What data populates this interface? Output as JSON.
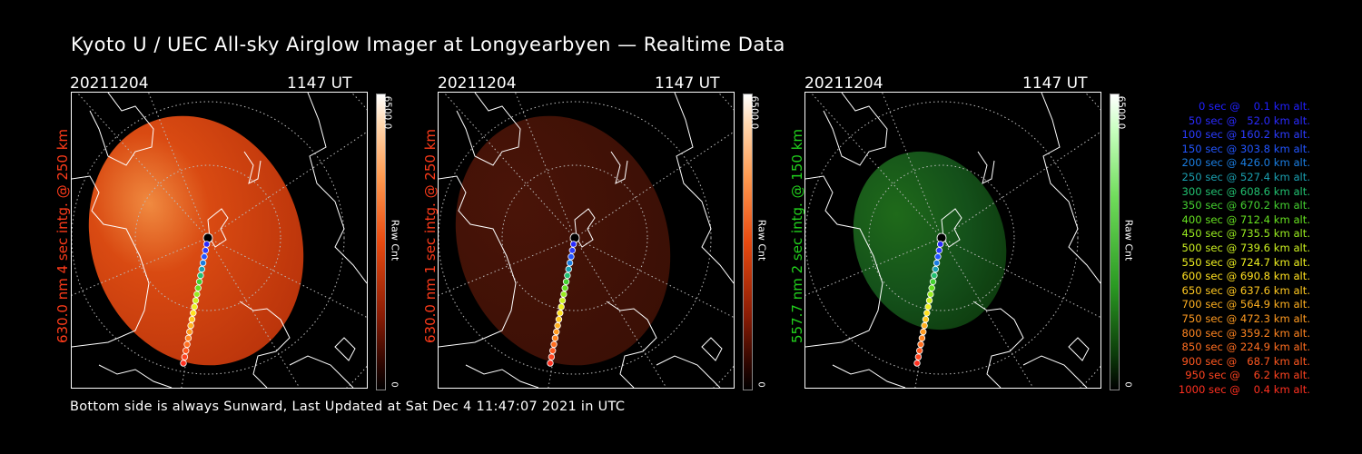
{
  "title": "Kyoto U / UEC All-sky Airglow Imager at Longyearbyen — Realtime Data",
  "footer": "Bottom side is always Sunward, Last Updated at Sat Dec  4 11:47:07 2021 in UTC",
  "panels": [
    {
      "date": "20211204",
      "time": "1147 UT",
      "label": "630.0 nm 4 sec intg. @ 250 km",
      "label_color": "#ff3b1a",
      "cbar_max": "6500.0",
      "cbar_min": "0",
      "cbar_unit": "Raw Cnt",
      "colormap": "red",
      "intensity": 0.95
    },
    {
      "date": "20211204",
      "time": "1147 UT",
      "label": "630.0 nm 1 sec intg. @ 250 km",
      "label_color": "#ff3b1a",
      "cbar_max": "6500.0",
      "cbar_min": "0",
      "cbar_unit": "Raw Cnt",
      "colormap": "red",
      "intensity": 0.35
    },
    {
      "date": "20211204",
      "time": "1147 UT",
      "label": "557.7 nm 2 sec intg. @ 150 km",
      "label_color": "#22d11d",
      "cbar_max": "6500.0",
      "cbar_min": "0",
      "cbar_unit": "Raw Cnt",
      "colormap": "green",
      "intensity": 0.5
    }
  ],
  "legend": [
    {
      "text": "0 sec @    0.1 km alt.",
      "color": "#2020ff"
    },
    {
      "text": "50 sec @   52.0 km alt.",
      "color": "#2a2aff"
    },
    {
      "text": "100 sec @ 160.2 km alt.",
      "color": "#2b3cff"
    },
    {
      "text": "150 sec @ 303.8 km alt.",
      "color": "#2255ff"
    },
    {
      "text": "200 sec @ 426.0 km alt.",
      "color": "#1a7de0"
    },
    {
      "text": "250 sec @ 527.4 km alt.",
      "color": "#1a9fb0"
    },
    {
      "text": "300 sec @ 608.6 km alt.",
      "color": "#22c070"
    },
    {
      "text": "350 sec @ 670.2 km alt.",
      "color": "#44d030"
    },
    {
      "text": "400 sec @ 712.4 km alt.",
      "color": "#66e020"
    },
    {
      "text": "450 sec @ 735.5 km alt.",
      "color": "#99ec20"
    },
    {
      "text": "500 sec @ 739.6 km alt.",
      "color": "#ccf020"
    },
    {
      "text": "550 sec @ 724.7 km alt.",
      "color": "#eef020"
    },
    {
      "text": "600 sec @ 690.8 km alt.",
      "color": "#ffe020"
    },
    {
      "text": "650 sec @ 637.6 km alt.",
      "color": "#ffc820"
    },
    {
      "text": "700 sec @ 564.9 km alt.",
      "color": "#ffb020"
    },
    {
      "text": "750 sec @ 472.3 km alt.",
      "color": "#ff9a20"
    },
    {
      "text": "800 sec @ 359.2 km alt.",
      "color": "#ff8420"
    },
    {
      "text": "850 sec @ 224.9 km alt.",
      "color": "#ff6e20"
    },
    {
      "text": "900 sec @   68.7 km alt.",
      "color": "#ff5820"
    },
    {
      "text": "950 sec @    6.2 km alt.",
      "color": "#ff4420"
    },
    {
      "text": "1000 sec @    0.4 km alt.",
      "color": "#ff3020"
    }
  ]
}
